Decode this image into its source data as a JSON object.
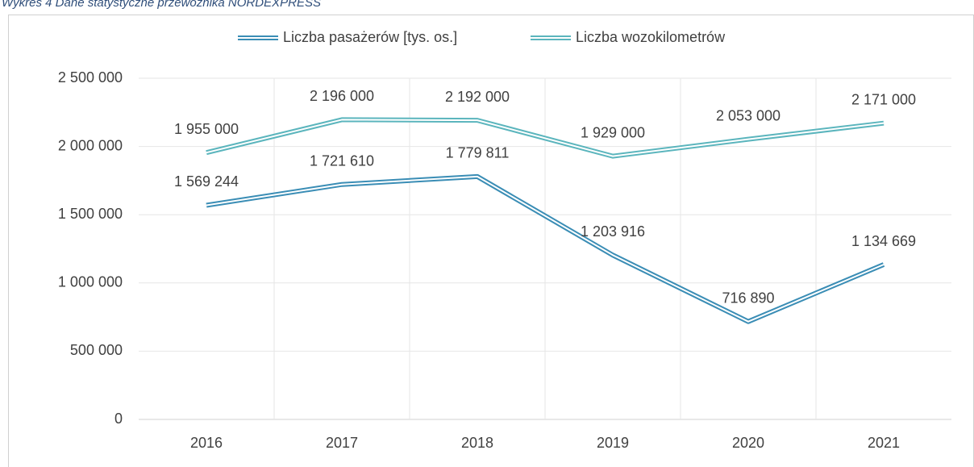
{
  "caption": "Wykres 4 Dane statystyczne przewoźnika NORDEXPRESS",
  "chart_data": {
    "type": "line",
    "categories": [
      "2016",
      "2017",
      "2018",
      "2019",
      "2020",
      "2021"
    ],
    "series": [
      {
        "name": "Liczba pasażerów [tys. os.]",
        "color": "#3a8db5",
        "values": [
          1569244,
          1721610,
          1779811,
          1203916,
          716890,
          1134669
        ],
        "value_labels": [
          "1 569 244",
          "1 721 610",
          "1 779 811",
          "1 203 916",
          "716 890",
          "1 134 669"
        ]
      },
      {
        "name": "Liczba wozokilometrów",
        "color": "#5bb5bd",
        "values": [
          1955000,
          2196000,
          2192000,
          1929000,
          2053000,
          2171000
        ],
        "value_labels": [
          "1 955 000",
          "2 196 000",
          "2 192 000",
          "1 929 000",
          "2 053 000",
          "2 171 000"
        ]
      }
    ],
    "ylim": [
      0,
      2500000
    ],
    "yticks": [
      0,
      {
        "value": 500000,
        "label": "500 000"
      },
      {
        "value": 1000000,
        "label": "1 000 000"
      },
      {
        "value": 1500000,
        "label": "1 500 000"
      },
      {
        "value": 2000000,
        "label": "2 000 000"
      },
      {
        "value": 2500000,
        "label": "2 500 000"
      }
    ],
    "grid": true,
    "legend": "top"
  }
}
